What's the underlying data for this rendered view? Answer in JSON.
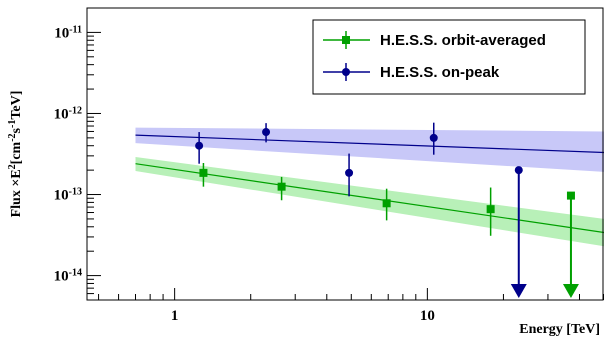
{
  "chart_data": {
    "type": "scatter",
    "xlabel": "Energy [TeV]",
    "ylabel": {
      "prefix": "Flux  ×E",
      "sup1": "2",
      "mid1": "[cm",
      "sup2": "-2",
      "mid2": "s",
      "sup3": "-1",
      "suffix": "TeV]"
    },
    "x_scale": "log",
    "y_scale": "log",
    "xlim": [
      0.45,
      50
    ],
    "ylim": [
      5e-15,
      2e-11
    ],
    "x_ticks": [
      {
        "value": 1,
        "label": "1"
      },
      {
        "value": 10,
        "label": "10"
      }
    ],
    "y_ticks": [
      {
        "value": 1e-14,
        "base": "10",
        "exp": "-14"
      },
      {
        "value": 1e-13,
        "base": "10",
        "exp": "-13"
      },
      {
        "value": 1e-12,
        "base": "10",
        "exp": "-12"
      },
      {
        "value": 1e-11,
        "base": "10",
        "exp": "-11"
      }
    ],
    "grid": false,
    "legend_position": "top-right",
    "series": [
      {
        "name": "H.E.S.S. orbit-averaged",
        "color": "#00a000",
        "band_color": "#b8f0b8",
        "marker": "square",
        "points": [
          {
            "x": 1.3,
            "y": 1.85e-13,
            "ylo": 1.25e-13,
            "yhi": 2.45e-13
          },
          {
            "x": 2.65,
            "y": 1.25e-13,
            "ylo": 8.5e-14,
            "yhi": 1.65e-13
          },
          {
            "x": 6.9,
            "y": 7.8e-14,
            "ylo": 4.8e-14,
            "yhi": 1.18e-13
          },
          {
            "x": 17.8,
            "y": 6.6e-14,
            "ylo": 3.1e-14,
            "yhi": 1.22e-13
          }
        ],
        "upper_limits": [
          {
            "x": 37,
            "y": 9.7e-14
          }
        ],
        "fit": {
          "x": [
            0.7,
            50
          ],
          "y": [
            2.4e-13,
            3.4e-14
          ]
        },
        "band_upper": [
          2.9e-13,
          5e-14
        ],
        "band_lower": [
          1.95e-13,
          2.3e-14
        ]
      },
      {
        "name": "H.E.S.S. on-peak",
        "color": "#00008b",
        "band_color": "#c8c8f8",
        "marker": "circle",
        "points": [
          {
            "x": 1.25,
            "y": 4e-13,
            "ylo": 2.4e-13,
            "yhi": 5.9e-13
          },
          {
            "x": 2.3,
            "y": 5.9e-13,
            "ylo": 4.4e-13,
            "yhi": 7.6e-13
          },
          {
            "x": 4.9,
            "y": 1.85e-13,
            "ylo": 9.5e-14,
            "yhi": 3.2e-13
          },
          {
            "x": 10.6,
            "y": 5e-13,
            "ylo": 3.1e-13,
            "yhi": 7.7e-13
          }
        ],
        "upper_limits": [
          {
            "x": 23,
            "y": 2e-13
          }
        ],
        "fit": {
          "x": [
            0.7,
            50
          ],
          "y": [
            5.4e-13,
            3.3e-13
          ]
        },
        "band_upper": [
          6.7e-13,
          6e-13
        ],
        "band_lower": [
          4.3e-13,
          1.9e-13
        ]
      }
    ]
  }
}
